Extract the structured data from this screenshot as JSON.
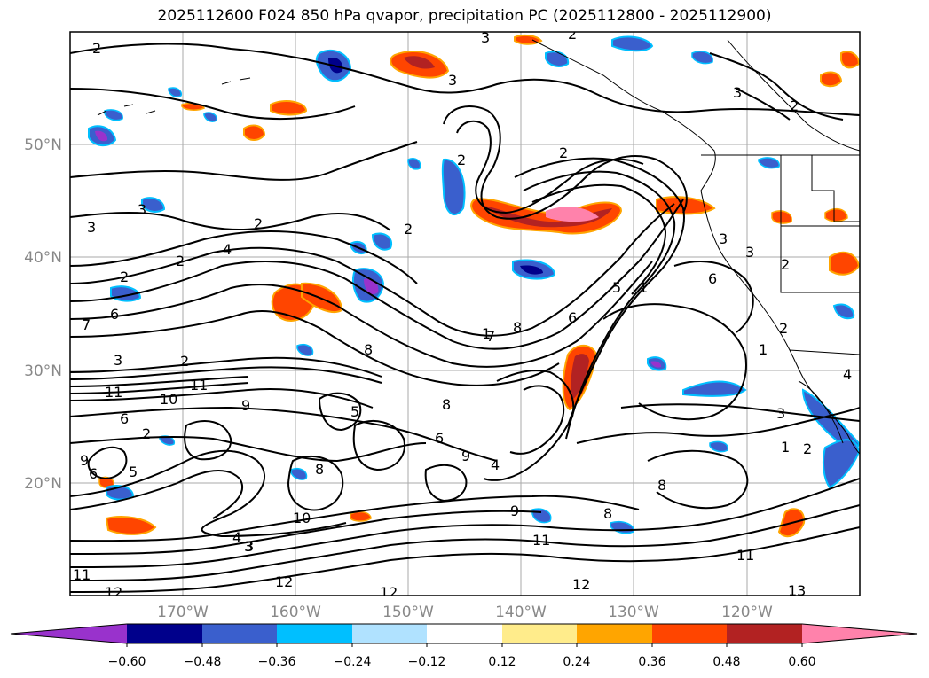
{
  "title": "2025112600 F024 850 hPa qvapor, precipitation PC (2025112800 - 2025112900)",
  "map": {
    "lat_labels": [
      "50°N",
      "40°N",
      "30°N",
      "20°N"
    ],
    "lon_labels": [
      "170°W",
      "160°W",
      "150°W",
      "140°W",
      "130°W",
      "120°W"
    ],
    "extent": {
      "lon": [
        -180,
        -110
      ],
      "lat": [
        10,
        60
      ]
    },
    "grid_spacing_deg": 10,
    "contour_labels": [
      "2",
      "3",
      "2",
      "3",
      "3",
      "2",
      "2",
      "2",
      "3",
      "2",
      "4",
      "2",
      "2",
      "3",
      "6",
      "7",
      "3",
      "2",
      "11",
      "10",
      "11",
      "6",
      "9",
      "5",
      "6",
      "9",
      "5",
      "8",
      "10",
      "4",
      "3",
      "12",
      "11",
      "12",
      "12",
      "2",
      "7",
      "6",
      "8",
      "5",
      "6",
      "8",
      "9",
      "4",
      "8",
      "9",
      "8",
      "11",
      "8",
      "12",
      "11",
      "13",
      "3",
      "2",
      "3",
      "4",
      "6",
      "1",
      "2",
      "1",
      "3",
      "2",
      "3",
      "1",
      "2",
      "1"
    ]
  },
  "colorbar": {
    "ticks": [
      "−0.60",
      "−0.48",
      "−0.36",
      "−0.24",
      "−0.12",
      "0.12",
      "0.24",
      "0.36",
      "0.48",
      "0.60"
    ],
    "colors": [
      "#9932cc",
      "#00008b",
      "#3a5fcd",
      "#00bfff",
      "#b0e2ff",
      "#ffffff",
      "#ffec8b",
      "#ffa500",
      "#ff4500",
      "#b22222",
      "#ff82ab"
    ]
  }
}
